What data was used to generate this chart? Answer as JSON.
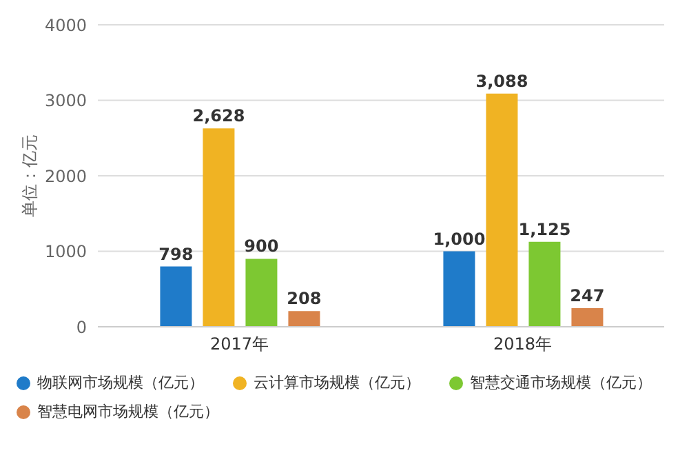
{
  "chart_data": {
    "type": "bar",
    "categories": [
      "2017年",
      "2018年"
    ],
    "ylabel": "单位：亿元",
    "ylim": [
      0,
      4000
    ],
    "yticks": [
      0,
      1000,
      2000,
      3000,
      4000
    ],
    "grid": "y",
    "legend": "bottom",
    "series": [
      {
        "name": "物联网市场规模（亿元）",
        "color": "#1f7bc9",
        "values": [
          798,
          1000
        ],
        "value_labels": [
          "798",
          "1,000"
        ]
      },
      {
        "name": "云计算市场规模（亿元）",
        "color": "#f0b323",
        "values": [
          2628,
          3088
        ],
        "value_labels": [
          "2,628",
          "3,088"
        ]
      },
      {
        "name": "智慧交通市场规模（亿元）",
        "color": "#7dc832",
        "values": [
          900,
          1125
        ],
        "value_labels": [
          "900",
          "1,125"
        ]
      },
      {
        "name": "智慧电网市场规模（亿元）",
        "color": "#d9844a",
        "values": [
          208,
          247
        ],
        "value_labels": [
          "208",
          "247"
        ]
      }
    ]
  }
}
